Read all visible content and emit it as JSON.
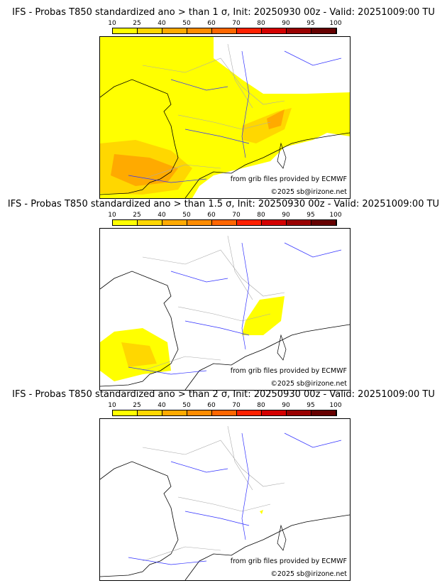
{
  "colorbar": {
    "ticks": [
      "10",
      "25",
      "40",
      "50",
      "60",
      "70",
      "80",
      "90",
      "95",
      "100"
    ],
    "colors": [
      "#ffff00",
      "#ffd700",
      "#ffaa00",
      "#ff8c00",
      "#ff6600",
      "#ff2000",
      "#d40000",
      "#990000",
      "#660000"
    ]
  },
  "panels": [
    {
      "title": "IFS - Probas T850  standardized ano > than 1 σ, Init: 20250930 00z - Valid: 20251009:00 TU",
      "source": "from grib files provided by ECMWF",
      "copyright": "©2025 sb@irizone.net"
    },
    {
      "title": "IFS - Probas T850  standardized ano > than 1.5 σ, Init: 20250930 00z - Valid: 20251009:00 TU",
      "source": "from grib files provided by ECMWF",
      "copyright": "©2025 sb@irizone.net"
    },
    {
      "title": "IFS - Probas T850  standardized ano > than 2 σ, Init: 20250930 00z - Valid: 20251009:00 TU",
      "source": "from grib files provided by ECMWF",
      "copyright": "©2025 sb@irizone.net"
    }
  ]
}
